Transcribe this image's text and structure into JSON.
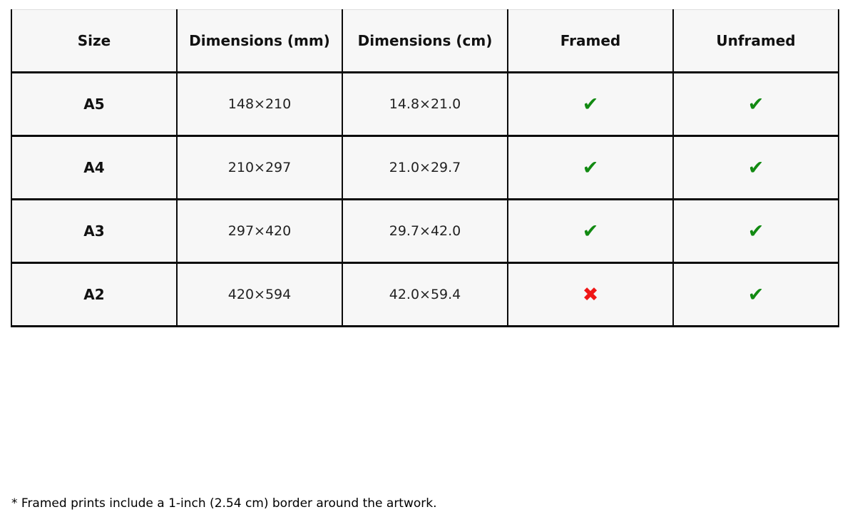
{
  "page": {
    "background": "#ffffff"
  },
  "table": {
    "cell_background": "#f7f7f7",
    "border_color": "#0a0a0a",
    "columns": [
      {
        "key": "size",
        "label": "Size"
      },
      {
        "key": "dimensions_mm",
        "label": "Dimensions (mm)"
      },
      {
        "key": "dimensions_cm",
        "label": "Dimensions (cm)"
      },
      {
        "key": "framed",
        "label": "Framed"
      },
      {
        "key": "unframed",
        "label": "Unframed"
      }
    ],
    "rows": [
      {
        "size": "A5",
        "dimensions_mm": "148×210",
        "dimensions_cm": "14.8×21.0",
        "framed": "yes",
        "unframed": "yes"
      },
      {
        "size": "A4",
        "dimensions_mm": "210×297",
        "dimensions_cm": "21.0×29.7",
        "framed": "yes",
        "unframed": "yes"
      },
      {
        "size": "A3",
        "dimensions_mm": "297×420",
        "dimensions_cm": "29.7×42.0",
        "framed": "yes",
        "unframed": "yes"
      },
      {
        "size": "A2",
        "dimensions_mm": "420×594",
        "dimensions_cm": "42.0×59.4",
        "framed": "no",
        "unframed": "yes"
      }
    ],
    "icons": {
      "yes": {
        "glyph": "✔",
        "name": "check-icon",
        "color": "#128a12"
      },
      "no": {
        "glyph": "✖",
        "name": "cross-icon",
        "color": "#ef1616"
      }
    }
  },
  "footnote": {
    "text": "* Framed prints include a 1-inch (2.54 cm) border around the artwork."
  }
}
